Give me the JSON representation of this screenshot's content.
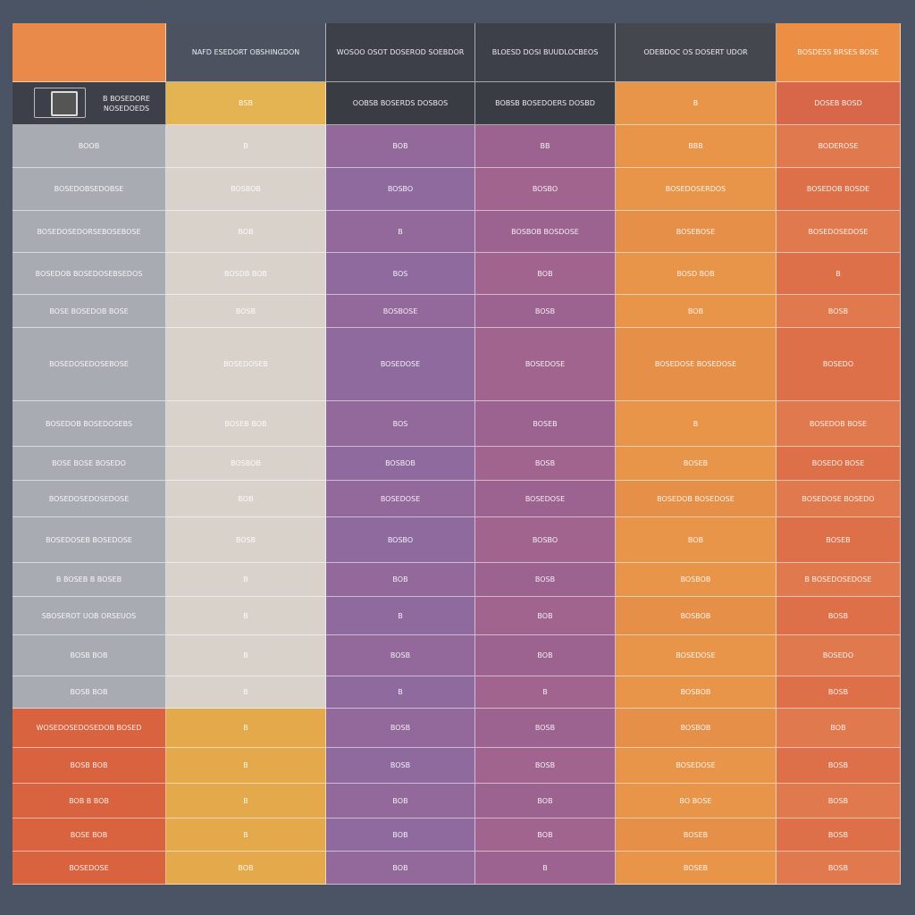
{
  "table": {
    "header": [
      "",
      "NAFD ESEDORT OBSHINGDON",
      "WOSOO OSOT DOSEROD SOEBDOR",
      "BLOESD DOSI BUUDLOCBEOS",
      "ODEBDOC OS DOSERT UDOR",
      "BOSDESS BRSES BOSE"
    ],
    "rows": [
      [
        "B BOSEDORE NOSEDOEDS",
        "BSB",
        "OOBSB BOSERDS DOSBOS",
        "BOBSB BOSEDOERS DOSBD",
        "B",
        "DOSEB BOSD"
      ],
      [
        "BOOB",
        "B",
        "BOB",
        "BB",
        "BBB",
        "BODEROSE"
      ],
      [
        "BOSEDOBSEDOBSE",
        "BOSBOB",
        "BOSBO",
        "BOSBO",
        "BOSEDOSERDOS",
        "BOSEDOB BOSDE"
      ],
      [
        "BOSEDOSEDORSEBOSEBOSE",
        "BOB",
        "B",
        "BOSBOB BOSDOSE",
        "BOSEBOSE",
        "BOSEDOSEDOSE"
      ],
      [
        "BOSEDOB BOSEDOSEBSEDOS",
        "BOSDB BOB",
        "BOS",
        "BOB",
        "BOSD BOB",
        "B"
      ],
      [
        "BOSE BOSEDOB BOSE",
        "BOSB",
        "BOSBOSE",
        "BOSB",
        "BOB",
        "BOSB"
      ],
      [
        "BOSEDOSEDOSEBOSE",
        "BOSEDOSEB",
        "BOSEDOSE",
        "BOSEDOSE",
        "BOSEDOSE BOSEDOSE",
        "BOSEDO"
      ],
      [
        "BOSEDOB BOSEDOSEBS",
        "BOSEB BOB",
        "BOS",
        "BOSEB",
        "B",
        "BOSEDOB BOSE"
      ],
      [
        "BOSE BOSE BOSEDO",
        "BOSBOB",
        "BOSBOB",
        "BOSB",
        "BOSEB",
        "BOSEDO BOSE"
      ],
      [
        "BOSEDOSEDOSEDOSE",
        "BOB",
        "BOSEDOSE",
        "BOSEDOSE",
        "BOSEDOB BOSEDOSE",
        "BOSEDOSE BOSEDO"
      ],
      [
        "BOSEDOSEB BOSEDOSE",
        "BOSB",
        "BOSBO",
        "BOSBO",
        "BOB",
        "BOSEB"
      ],
      [
        "B BOSEB B BOSEB",
        "B",
        "BOB",
        "BOSB",
        "BOSBOB",
        "B BOSEDOSEDOSE"
      ],
      [
        "SBOSEROT UOB ORSEUOS",
        "B",
        "B",
        "BOB",
        "BOSBOB",
        "BOSB"
      ],
      [
        "BOSB BOB",
        "B",
        "BOSB",
        "BOB",
        "BOSEDOSE",
        "BOSEDO"
      ],
      [
        "BOSB BOB",
        "B",
        "B",
        "B",
        "BOSBOB",
        "BOSB"
      ],
      [
        "WOSEDOSEDOSEDOB BOSED",
        "B",
        "BOSB",
        "BOSB",
        "BOSBOB",
        "BOB"
      ],
      [
        "BOSB BOB",
        "B",
        "BOSB",
        "BOSB",
        "BOSEDOSE",
        "BOSB"
      ],
      [
        "BOB B BOB",
        "B",
        "BOB",
        "BOB",
        "BO BOSE",
        "BOSB"
      ],
      [
        "BOSE BOB",
        "B",
        "BOB",
        "BOB",
        "BOSEB",
        "BOSB"
      ],
      [
        "BOSEDOSE",
        "BOB",
        "BOB",
        "B",
        "BOSEB",
        "BOSB"
      ]
    ]
  }
}
